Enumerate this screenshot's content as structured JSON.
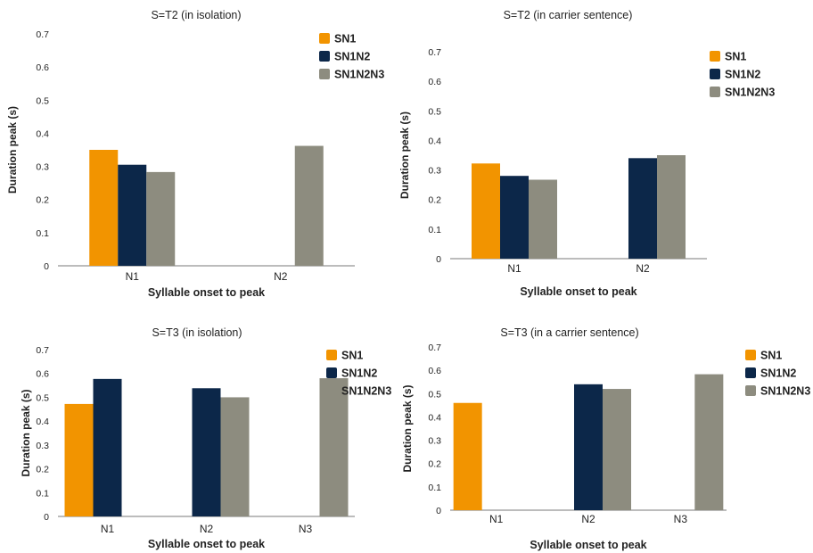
{
  "colors": {
    "SN1": "#f29400",
    "SN1N2": "#0c2749",
    "SN1N2N3": "#8d8c7f",
    "axis": "#7a7a7a",
    "text": "#222222"
  },
  "chart_data": [
    {
      "type": "bar",
      "title": "S=T2 (in isolation)",
      "xlabel": "Syllable onset to peak",
      "ylabel": "Duration peak (s)",
      "ylim": [
        0,
        0.7
      ],
      "yticks": [
        "0",
        "0.1",
        "0.2",
        "0.3",
        "0.4",
        "0.5",
        "0.6",
        "0.7"
      ],
      "categories": [
        "N1",
        "N2"
      ],
      "series": [
        {
          "name": "SN1",
          "values": [
            0.35,
            null
          ]
        },
        {
          "name": "SN1N2",
          "values": [
            0.305,
            null
          ]
        },
        {
          "name": "SN1N2N3",
          "values": [
            0.283,
            0.362
          ]
        }
      ],
      "legend": "top-right",
      "grid": false
    },
    {
      "type": "bar",
      "title": "S=T2 (in carrier sentence)",
      "xlabel": "Syllable onset to peak",
      "ylabel": "Duration peak (s)",
      "ylim": [
        0,
        0.7
      ],
      "yticks": [
        "0",
        "0.1",
        "0.2",
        "0.3",
        "0.4",
        "0.5",
        "0.6",
        "0.7"
      ],
      "categories": [
        "N1",
        "N2"
      ],
      "series": [
        {
          "name": "SN1",
          "values": [
            0.322,
            null
          ]
        },
        {
          "name": "SN1N2",
          "values": [
            0.28,
            0.34
          ]
        },
        {
          "name": "SN1N2N3",
          "values": [
            0.267,
            0.35
          ]
        }
      ],
      "legend": "top-right",
      "grid": false
    },
    {
      "type": "bar",
      "title": "S=T3 (in isolation)",
      "xlabel": "Syllable onset to peak",
      "ylabel": "Duration peak (s)",
      "ylim": [
        0,
        0.7
      ],
      "yticks": [
        "0",
        "0.1",
        "0.2",
        "0.3",
        "0.4",
        "0.5",
        "0.6",
        "0.7"
      ],
      "categories": [
        "N1",
        "N2",
        "N3"
      ],
      "series": [
        {
          "name": "SN1",
          "values": [
            0.472,
            null,
            null
          ]
        },
        {
          "name": "SN1N2",
          "values": [
            0.577,
            0.538,
            null
          ]
        },
        {
          "name": "SN1N2N3",
          "values": [
            null,
            0.5,
            0.58
          ]
        }
      ],
      "legend": "top-right",
      "grid": false
    },
    {
      "type": "bar",
      "title": "S=T3 (in a carrier sentence)",
      "xlabel": "Syllable onset to peak",
      "ylabel": "Duration peak (s)",
      "ylim": [
        0,
        0.7
      ],
      "yticks": [
        "0",
        "0.1",
        "0.2",
        "0.3",
        "0.4",
        "0.5",
        "0.6",
        "0.7"
      ],
      "categories": [
        "N1",
        "N2",
        "N3"
      ],
      "series": [
        {
          "name": "SN1",
          "values": [
            0.46,
            null,
            null
          ]
        },
        {
          "name": "SN1N2",
          "values": [
            null,
            0.54,
            null
          ]
        },
        {
          "name": "SN1N2N3",
          "values": [
            null,
            0.52,
            0.583
          ]
        }
      ],
      "legend": "top-right",
      "grid": false
    }
  ]
}
